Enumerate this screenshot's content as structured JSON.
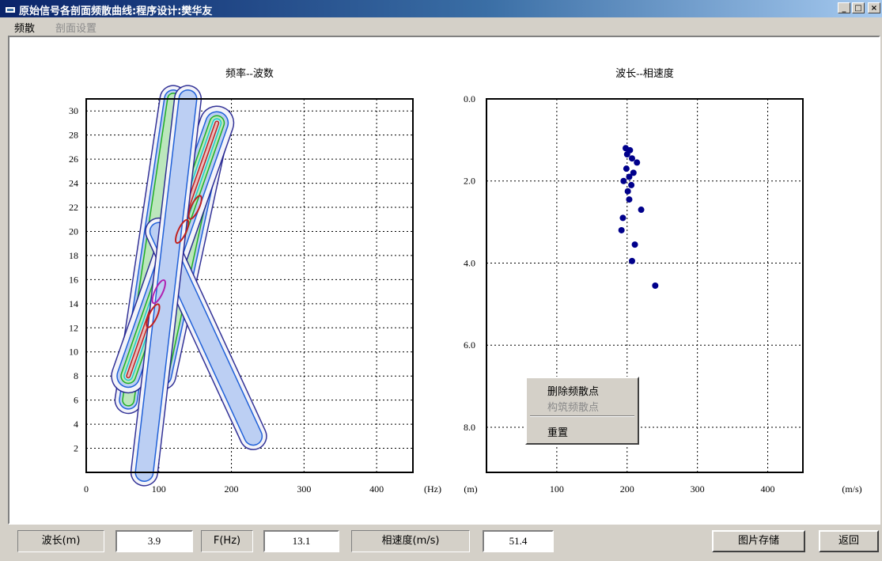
{
  "window": {
    "title": "原始信号各剖面频散曲线:程序设计:樊华友",
    "minimize": "_",
    "maximize": "□",
    "close": "×"
  },
  "menu": [
    {
      "label": "频散",
      "enabled": true
    },
    {
      "label": "剖面设置",
      "enabled": false
    }
  ],
  "chart_data": [
    {
      "type": "contour",
      "title": "频率--波数",
      "x_unit": "(Hz)",
      "x_ticks": [
        "0",
        "100",
        "200",
        "300",
        "400"
      ],
      "y_ticks": [
        "2",
        "4",
        "6",
        "8",
        "10",
        "12",
        "14",
        "16",
        "18",
        "20",
        "22",
        "24",
        "26",
        "28",
        "30"
      ],
      "xlim": [
        0,
        450
      ],
      "ylim": [
        0,
        31
      ],
      "grid": true,
      "levels": [
        "#1c1c8c",
        "#2060d8",
        "#20b020",
        "#20c8c8",
        "#c02020",
        "#b020b0"
      ]
    },
    {
      "type": "scatter",
      "title": "波长--相速度",
      "x_label": "(m)",
      "x_unit": "(m/s)",
      "x_ticks": [
        "100",
        "200",
        "300",
        "400"
      ],
      "y_ticks": [
        "0.0",
        "2.0",
        "4.0",
        "6.0",
        "8.0"
      ],
      "xlim": [
        0,
        450
      ],
      "ylim": [
        0,
        9.1
      ],
      "y_reversed": true,
      "grid": true,
      "color": "#00008b",
      "points": [
        [
          198,
          1.2
        ],
        [
          204,
          1.25
        ],
        [
          200,
          1.35
        ],
        [
          207,
          1.45
        ],
        [
          214,
          1.55
        ],
        [
          199,
          1.7
        ],
        [
          209,
          1.8
        ],
        [
          203,
          1.9
        ],
        [
          195,
          2.0
        ],
        [
          206,
          2.1
        ],
        [
          201,
          2.25
        ],
        [
          203,
          2.45
        ],
        [
          220,
          2.7
        ],
        [
          194,
          2.9
        ],
        [
          192,
          3.2
        ],
        [
          211,
          3.55
        ],
        [
          207,
          3.95
        ],
        [
          240,
          4.55
        ]
      ]
    }
  ],
  "context_menu": [
    {
      "label": "删除频散点",
      "enabled": true
    },
    {
      "label": "构筑频散点",
      "enabled": false
    },
    {
      "label": "重置",
      "enabled": true
    }
  ],
  "status": {
    "wavelength_label": "波长(m)",
    "wavelength_value": "3.9",
    "freq_label": "F(Hz)",
    "freq_value": "13.1",
    "velocity_label": "相速度(m/s)",
    "velocity_value": "51.4"
  },
  "buttons": {
    "save": "图片存储",
    "back": "返回"
  }
}
